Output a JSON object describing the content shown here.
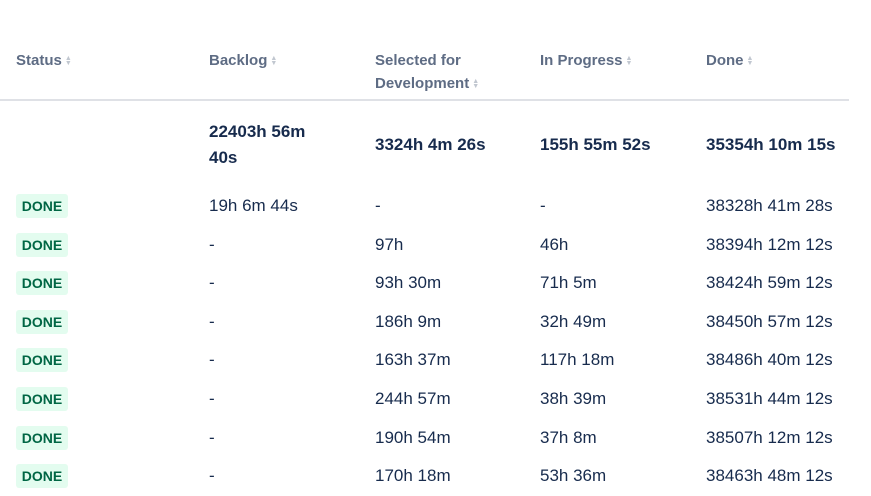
{
  "headers": [
    {
      "label": "Status"
    },
    {
      "label": "Backlog"
    },
    {
      "label": "Selected for Development",
      "line1": "Selected for",
      "line2": "Development"
    },
    {
      "label": "In Progress"
    },
    {
      "label": "Done"
    }
  ],
  "totals": {
    "backlog": "22403h 56m 40s",
    "backlog_line1": "22403h 56m",
    "backlog_line2": "40s",
    "selected": "3324h 4m 26s",
    "in_progress": "155h 55m 52s",
    "done": "35354h 10m 15s"
  },
  "rows": [
    {
      "status": "DONE",
      "backlog": "19h 6m 44s",
      "selected": "-",
      "in_progress": "-",
      "done": "38328h 41m 28s"
    },
    {
      "status": "DONE",
      "backlog": "-",
      "selected": "97h",
      "in_progress": "46h",
      "done": "38394h 12m 12s"
    },
    {
      "status": "DONE",
      "backlog": "-",
      "selected": "93h 30m",
      "in_progress": "71h 5m",
      "done": "38424h 59m 12s"
    },
    {
      "status": "DONE",
      "backlog": "-",
      "selected": "186h 9m",
      "in_progress": "32h 49m",
      "done": "38450h 57m 12s"
    },
    {
      "status": "DONE",
      "backlog": "-",
      "selected": "163h 37m",
      "in_progress": "117h 18m",
      "done": "38486h 40m 12s"
    },
    {
      "status": "DONE",
      "backlog": "-",
      "selected": "244h 57m",
      "in_progress": "38h 39m",
      "done": "38531h 44m 12s"
    },
    {
      "status": "DONE",
      "backlog": "-",
      "selected": "190h 54m",
      "in_progress": "37h 8m",
      "done": "38507h 12m 12s"
    },
    {
      "status": "DONE",
      "backlog": "-",
      "selected": "170h 18m",
      "in_progress": "53h 36m",
      "done": "38463h 48m 12s"
    }
  ],
  "colors": {
    "badge_bg": "#e3fcef",
    "badge_text": "#006644",
    "header_text": "#5e6c84",
    "body_text": "#172b4d"
  }
}
